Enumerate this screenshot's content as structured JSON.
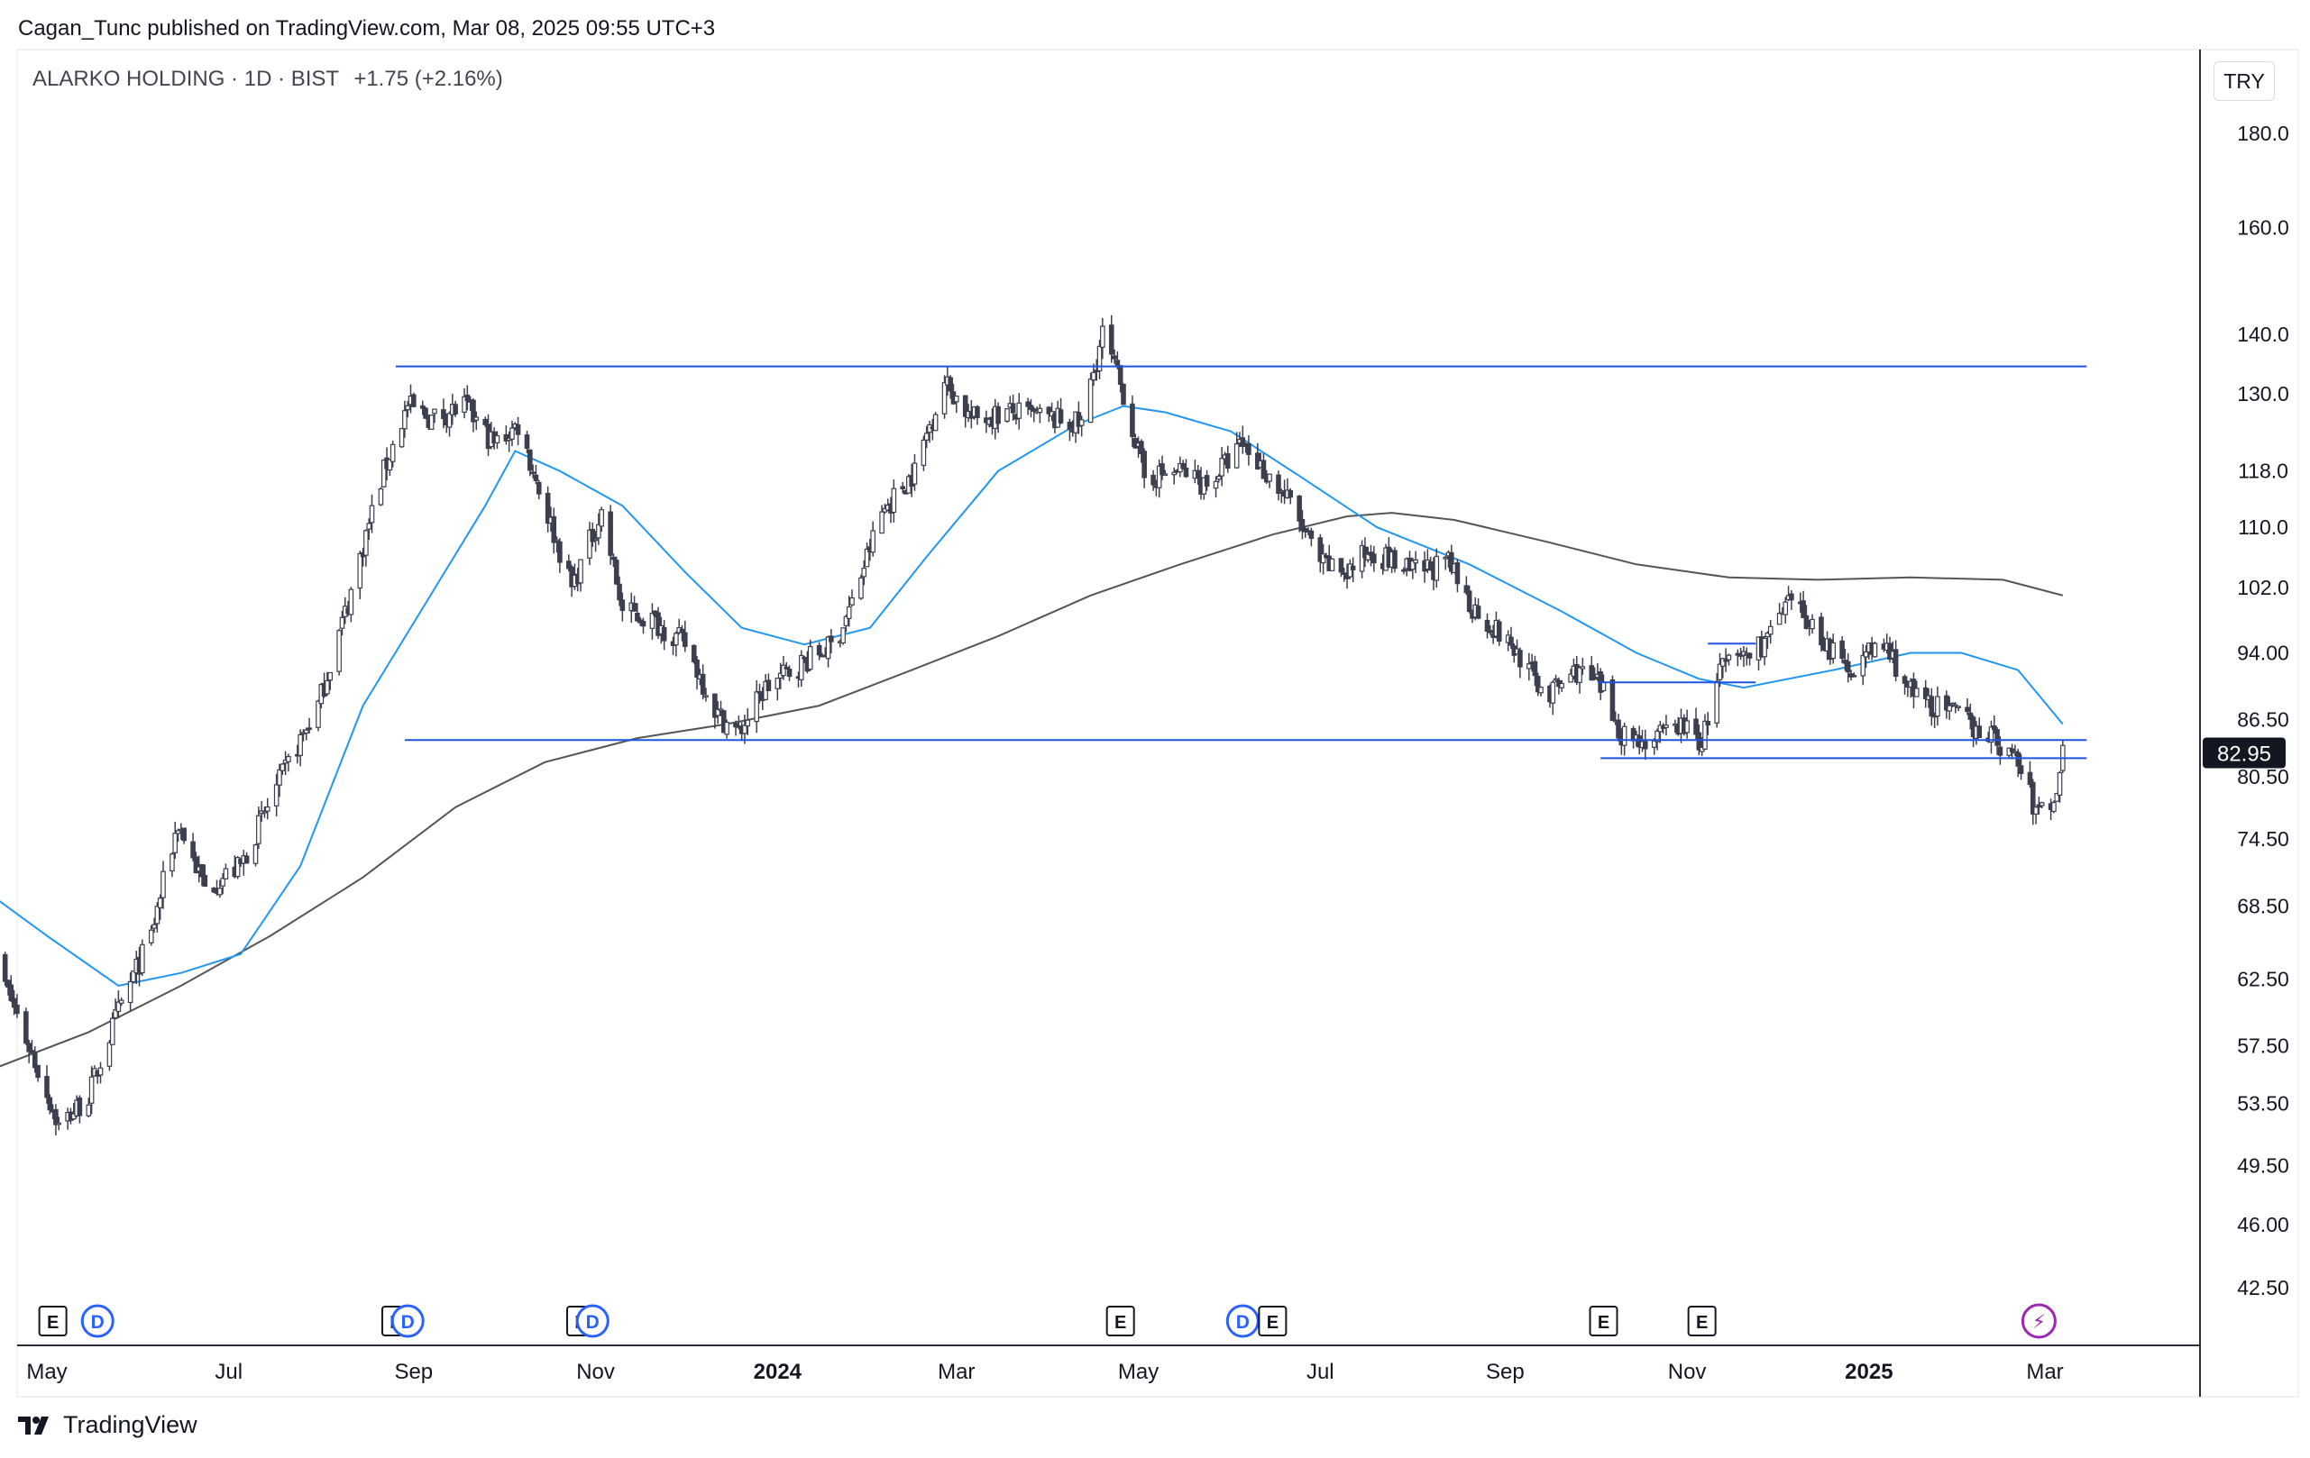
{
  "header": {
    "attribution": "Cagan_Tunc published on TradingView.com, Mar 08, 2025 09:55 UTC+3",
    "symbol": "ALARKO HOLDING · 1D · BIST",
    "change": "+1.75 (+2.16%)"
  },
  "currency": "TRY",
  "last_price_label": "82.95",
  "brand": "TradingView",
  "colors": {
    "candle": "#3b3f4e",
    "ma_short": "#2196f3",
    "ma_long": "#555555",
    "trendline": "#1e53e5",
    "price_tag_bg": "#131722",
    "dividend_badge": "#2962ff",
    "flash_badge": "#9c27b0"
  },
  "chart_data": {
    "type": "candlestick",
    "scale": "log",
    "ylim": [
      40,
      195
    ],
    "y_ticks": [
      "180.0",
      "160.0",
      "140.0",
      "130.0",
      "118.0",
      "110.0",
      "102.0",
      "94.00",
      "86.50",
      "80.50",
      "74.50",
      "68.50",
      "62.50",
      "57.50",
      "53.50",
      "49.50",
      "46.00",
      "42.50"
    ],
    "x_ticks": [
      {
        "label": "May",
        "date": "2023-05-01",
        "bold": false
      },
      {
        "label": "Jul",
        "date": "2023-07-01",
        "bold": false
      },
      {
        "label": "Sep",
        "date": "2023-09-01",
        "bold": false
      },
      {
        "label": "Nov",
        "date": "2023-11-01",
        "bold": false
      },
      {
        "label": "2024",
        "date": "2024-01-01",
        "bold": true
      },
      {
        "label": "Mar",
        "date": "2024-03-01",
        "bold": false
      },
      {
        "label": "May",
        "date": "2024-05-01",
        "bold": false
      },
      {
        "label": "Jul",
        "date": "2024-07-01",
        "bold": false
      },
      {
        "label": "Sep",
        "date": "2024-09-01",
        "bold": false
      },
      {
        "label": "Nov",
        "date": "2024-11-01",
        "bold": false
      },
      {
        "label": "2025",
        "date": "2025-01-01",
        "bold": true
      },
      {
        "label": "Mar",
        "date": "2025-03-01",
        "bold": false
      }
    ],
    "price_keyframes": [
      [
        "2023-04-12",
        65
      ],
      [
        "2023-04-24",
        58
      ],
      [
        "2023-05-05",
        52
      ],
      [
        "2023-05-15",
        54
      ],
      [
        "2023-05-25",
        60
      ],
      [
        "2023-06-05",
        66
      ],
      [
        "2023-06-14",
        76
      ],
      [
        "2023-06-23",
        70
      ],
      [
        "2023-07-05",
        72
      ],
      [
        "2023-07-18",
        80
      ],
      [
        "2023-07-31",
        88
      ],
      [
        "2023-08-10",
        100
      ],
      [
        "2023-08-22",
        118
      ],
      [
        "2023-08-30",
        128
      ],
      [
        "2023-09-07",
        126
      ],
      [
        "2023-09-18",
        128
      ],
      [
        "2023-09-28",
        122
      ],
      [
        "2023-10-06",
        125
      ],
      [
        "2023-10-14",
        114
      ],
      [
        "2023-10-24",
        102
      ],
      [
        "2023-11-03",
        112
      ],
      [
        "2023-11-10",
        99
      ],
      [
        "2023-11-20",
        98
      ],
      [
        "2023-12-01",
        95
      ],
      [
        "2023-12-12",
        87
      ],
      [
        "2023-12-19",
        85
      ],
      [
        "2023-12-28",
        90
      ],
      [
        "2024-01-10",
        93
      ],
      [
        "2024-01-20",
        95
      ],
      [
        "2024-01-26",
        100
      ],
      [
        "2024-02-05",
        112
      ],
      [
        "2024-02-16",
        118
      ],
      [
        "2024-02-26",
        132
      ],
      [
        "2024-03-06",
        126
      ],
      [
        "2024-03-19",
        127
      ],
      [
        "2024-04-01",
        126
      ],
      [
        "2024-04-12",
        125
      ],
      [
        "2024-04-19",
        140
      ],
      [
        "2024-04-26",
        130
      ],
      [
        "2024-05-03",
        117
      ],
      [
        "2024-05-15",
        118
      ],
      [
        "2024-05-24",
        116
      ],
      [
        "2024-06-05",
        122
      ],
      [
        "2024-06-20",
        114
      ],
      [
        "2024-07-01",
        105
      ],
      [
        "2024-07-10",
        104
      ],
      [
        "2024-07-18",
        107
      ],
      [
        "2024-07-31",
        104
      ],
      [
        "2024-08-13",
        105
      ],
      [
        "2024-08-20",
        100
      ],
      [
        "2024-09-05",
        94
      ],
      [
        "2024-09-15",
        89
      ],
      [
        "2024-09-25",
        92
      ],
      [
        "2024-10-03",
        90
      ],
      [
        "2024-10-10",
        85
      ],
      [
        "2024-10-20",
        84
      ],
      [
        "2024-10-30",
        86
      ],
      [
        "2024-11-06",
        84
      ],
      [
        "2024-11-12",
        92
      ],
      [
        "2024-11-26",
        95
      ],
      [
        "2024-12-06",
        100
      ],
      [
        "2024-12-16",
        96
      ],
      [
        "2024-12-24",
        92
      ],
      [
        "2025-01-06",
        95
      ],
      [
        "2025-01-16",
        89
      ],
      [
        "2025-01-30",
        87
      ],
      [
        "2025-02-10",
        85
      ],
      [
        "2025-02-20",
        82
      ],
      [
        "2025-02-26",
        77
      ],
      [
        "2025-03-04",
        78
      ],
      [
        "2025-03-07",
        82.95
      ]
    ],
    "ma_short": [
      [
        "2023-04-12",
        69.5
      ],
      [
        "2023-05-01",
        66
      ],
      [
        "2023-05-25",
        62
      ],
      [
        "2023-06-15",
        63
      ],
      [
        "2023-07-05",
        64.5
      ],
      [
        "2023-07-25",
        72
      ],
      [
        "2023-08-15",
        88
      ],
      [
        "2023-09-05",
        100
      ],
      [
        "2023-09-25",
        113
      ],
      [
        "2023-10-05",
        121
      ],
      [
        "2023-10-20",
        118
      ],
      [
        "2023-11-10",
        113
      ],
      [
        "2023-12-01",
        104
      ],
      [
        "2023-12-20",
        97
      ],
      [
        "2024-01-10",
        95
      ],
      [
        "2024-02-01",
        97
      ],
      [
        "2024-02-20",
        106
      ],
      [
        "2024-03-15",
        118
      ],
      [
        "2024-04-10",
        125
      ],
      [
        "2024-04-26",
        128
      ],
      [
        "2024-05-10",
        127
      ],
      [
        "2024-06-01",
        124
      ],
      [
        "2024-06-25",
        117
      ],
      [
        "2024-07-20",
        110
      ],
      [
        "2024-08-20",
        105
      ],
      [
        "2024-09-20",
        99
      ],
      [
        "2024-10-15",
        94
      ],
      [
        "2024-11-05",
        91
      ],
      [
        "2024-11-20",
        90
      ],
      [
        "2024-12-20",
        92
      ],
      [
        "2025-01-15",
        94
      ],
      [
        "2025-02-01",
        94
      ],
      [
        "2025-02-20",
        92
      ],
      [
        "2025-03-07",
        86
      ]
    ],
    "ma_long": [
      [
        "2023-04-12",
        55.8
      ],
      [
        "2023-05-15",
        58.5
      ],
      [
        "2023-06-15",
        62
      ],
      [
        "2023-07-15",
        66
      ],
      [
        "2023-08-15",
        71
      ],
      [
        "2023-09-15",
        77.5
      ],
      [
        "2023-10-15",
        82
      ],
      [
        "2023-11-15",
        84.5
      ],
      [
        "2023-12-15",
        86
      ],
      [
        "2024-01-15",
        88
      ],
      [
        "2024-02-15",
        92
      ],
      [
        "2024-03-15",
        96
      ],
      [
        "2024-04-15",
        101
      ],
      [
        "2024-05-15",
        105
      ],
      [
        "2024-06-15",
        109
      ],
      [
        "2024-07-10",
        111.5
      ],
      [
        "2024-07-25",
        112
      ],
      [
        "2024-08-15",
        111
      ],
      [
        "2024-09-15",
        108
      ],
      [
        "2024-10-15",
        105
      ],
      [
        "2024-11-15",
        103.3
      ],
      [
        "2024-12-15",
        103
      ],
      [
        "2025-01-15",
        103.3
      ],
      [
        "2025-02-15",
        103
      ],
      [
        "2025-03-07",
        101
      ]
    ],
    "horizontal_lines": [
      {
        "price": 134.5,
        "from": "2023-08-26",
        "to": "2025-03-15"
      },
      {
        "price": 84.3,
        "from": "2023-08-29",
        "to": "2025-03-15"
      },
      {
        "price": 82.4,
        "from": "2024-10-03",
        "to": "2025-03-15"
      },
      {
        "price": 90.6,
        "from": "2024-10-02",
        "to": "2024-11-24"
      },
      {
        "price": 95.1,
        "from": "2024-11-08",
        "to": "2024-11-24"
      }
    ],
    "events": [
      {
        "date": "2023-05-03",
        "kind": "earnings",
        "label": "E"
      },
      {
        "date": "2023-05-18",
        "kind": "dividend",
        "label": "D"
      },
      {
        "date": "2023-08-26",
        "kind": "earnings",
        "label": "E"
      },
      {
        "date": "2023-08-30",
        "kind": "dividend",
        "label": "D"
      },
      {
        "date": "2023-10-27",
        "kind": "earnings",
        "label": "E"
      },
      {
        "date": "2023-10-31",
        "kind": "dividend",
        "label": "D"
      },
      {
        "date": "2024-04-25",
        "kind": "earnings",
        "label": "E"
      },
      {
        "date": "2024-06-05",
        "kind": "dividend",
        "label": "D"
      },
      {
        "date": "2024-06-15",
        "kind": "earnings",
        "label": "E"
      },
      {
        "date": "2024-10-04",
        "kind": "earnings",
        "label": "E"
      },
      {
        "date": "2024-11-06",
        "kind": "earnings",
        "label": "E"
      },
      {
        "date": "2025-02-27",
        "kind": "flash",
        "label": "⚡"
      }
    ],
    "last_price": 82.95
  }
}
